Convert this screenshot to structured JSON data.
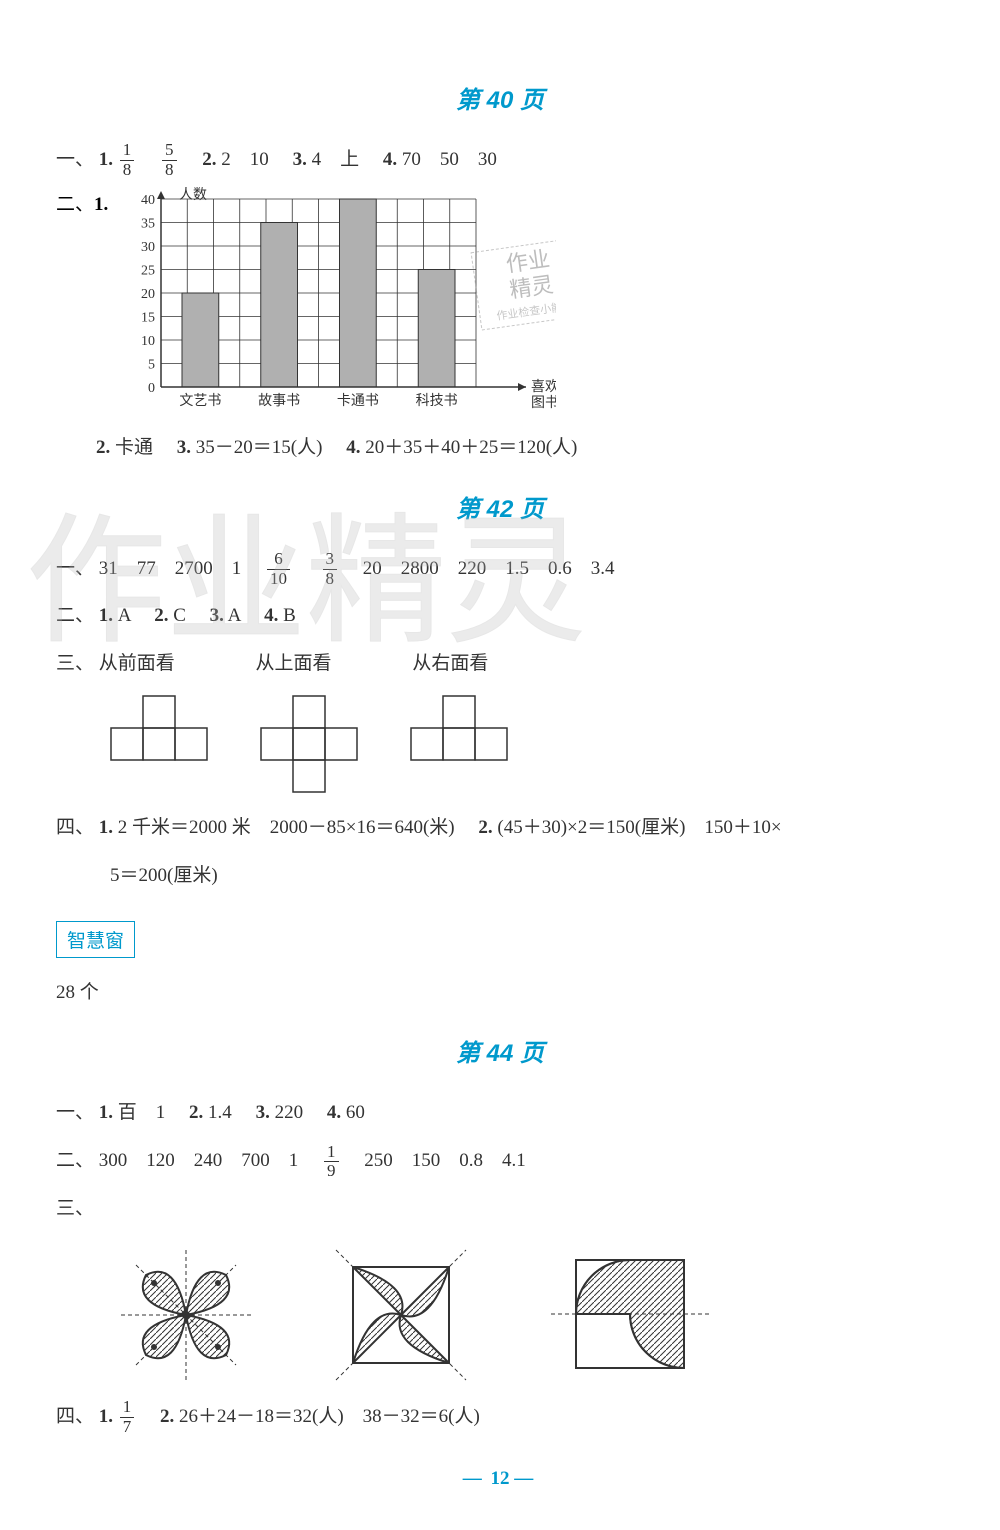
{
  "page40": {
    "title": "第 40 页",
    "q1": {
      "prefix": "一、",
      "n1": "1.",
      "f1n": "1",
      "f1d": "8",
      "f2n": "5",
      "f2d": "8",
      "n2": "2.",
      "a2": "2　10",
      "n3": "3.",
      "a3": "4　上",
      "n4": "4.",
      "a4": "70　50　30"
    },
    "q2": {
      "prefix": "二、",
      "n1": "1.",
      "chart": {
        "ylabel": "人数",
        "xlabel": "喜欢的\n图书",
        "ymax": 40,
        "ystep": 5,
        "categories": [
          "文艺书",
          "故事书",
          "卡通书",
          "科技书"
        ],
        "values": [
          20,
          35,
          40,
          25
        ],
        "bar_color": "#b0b0b0",
        "grid_color": "#333333",
        "stamp": {
          "line1": "作业",
          "line2": "精灵",
          "line3": "作业检查小能手"
        }
      },
      "n2": "2.",
      "a2": "卡通",
      "n3": "3.",
      "a3": "35－20＝15(人)",
      "n4": "4.",
      "a4": "20＋35＋40＋25＝120(人)"
    }
  },
  "page42": {
    "title": "第 42 页",
    "q1": {
      "prefix": "一、",
      "before": "31　77　2700　1　",
      "f1n": "6",
      "f1d": "10",
      "mid": "　",
      "f2n": "3",
      "f2d": "8",
      "after": "　20　2800　220　1.5　0.6　3.4"
    },
    "q2": {
      "prefix": "二、",
      "n1": "1.",
      "a1": "A",
      "n2": "2.",
      "a2": "C",
      "n3": "3.",
      "a3": "A",
      "n4": "4.",
      "a4": "B"
    },
    "q3": {
      "prefix": "三、",
      "labels": [
        "从前面看",
        "从上面看",
        "从右面看"
      ]
    },
    "q4": {
      "prefix": "四、",
      "n1": "1.",
      "a1": "2 千米＝2000 米　2000－85×16＝640(米)",
      "n2": "2.",
      "a2": "(45＋30)×2＝150(厘米)　150＋10×",
      "cont": "5＝200(厘米)"
    },
    "wisdom": {
      "label": "智慧窗",
      "answer": "28 个"
    }
  },
  "page44": {
    "title": "第 44 页",
    "q1": {
      "prefix": "一、",
      "n1": "1.",
      "a1": "百　1",
      "n2": "2.",
      "a2": "1.4",
      "n3": "3.",
      "a3": "220",
      "n4": "4.",
      "a4": "60"
    },
    "q2": {
      "prefix": "二、",
      "before": "300　120　240　700　1　",
      "fn": "1",
      "fd": "9",
      "after": "　250　150　0.8　4.1"
    },
    "q3": {
      "prefix": "三、"
    },
    "q4": {
      "prefix": "四、",
      "n1": "1.",
      "fn": "1",
      "fd": "7",
      "n2": "2.",
      "a2": "26＋24－18＝32(人)　38－32＝6(人)"
    }
  },
  "pagenum": "12"
}
